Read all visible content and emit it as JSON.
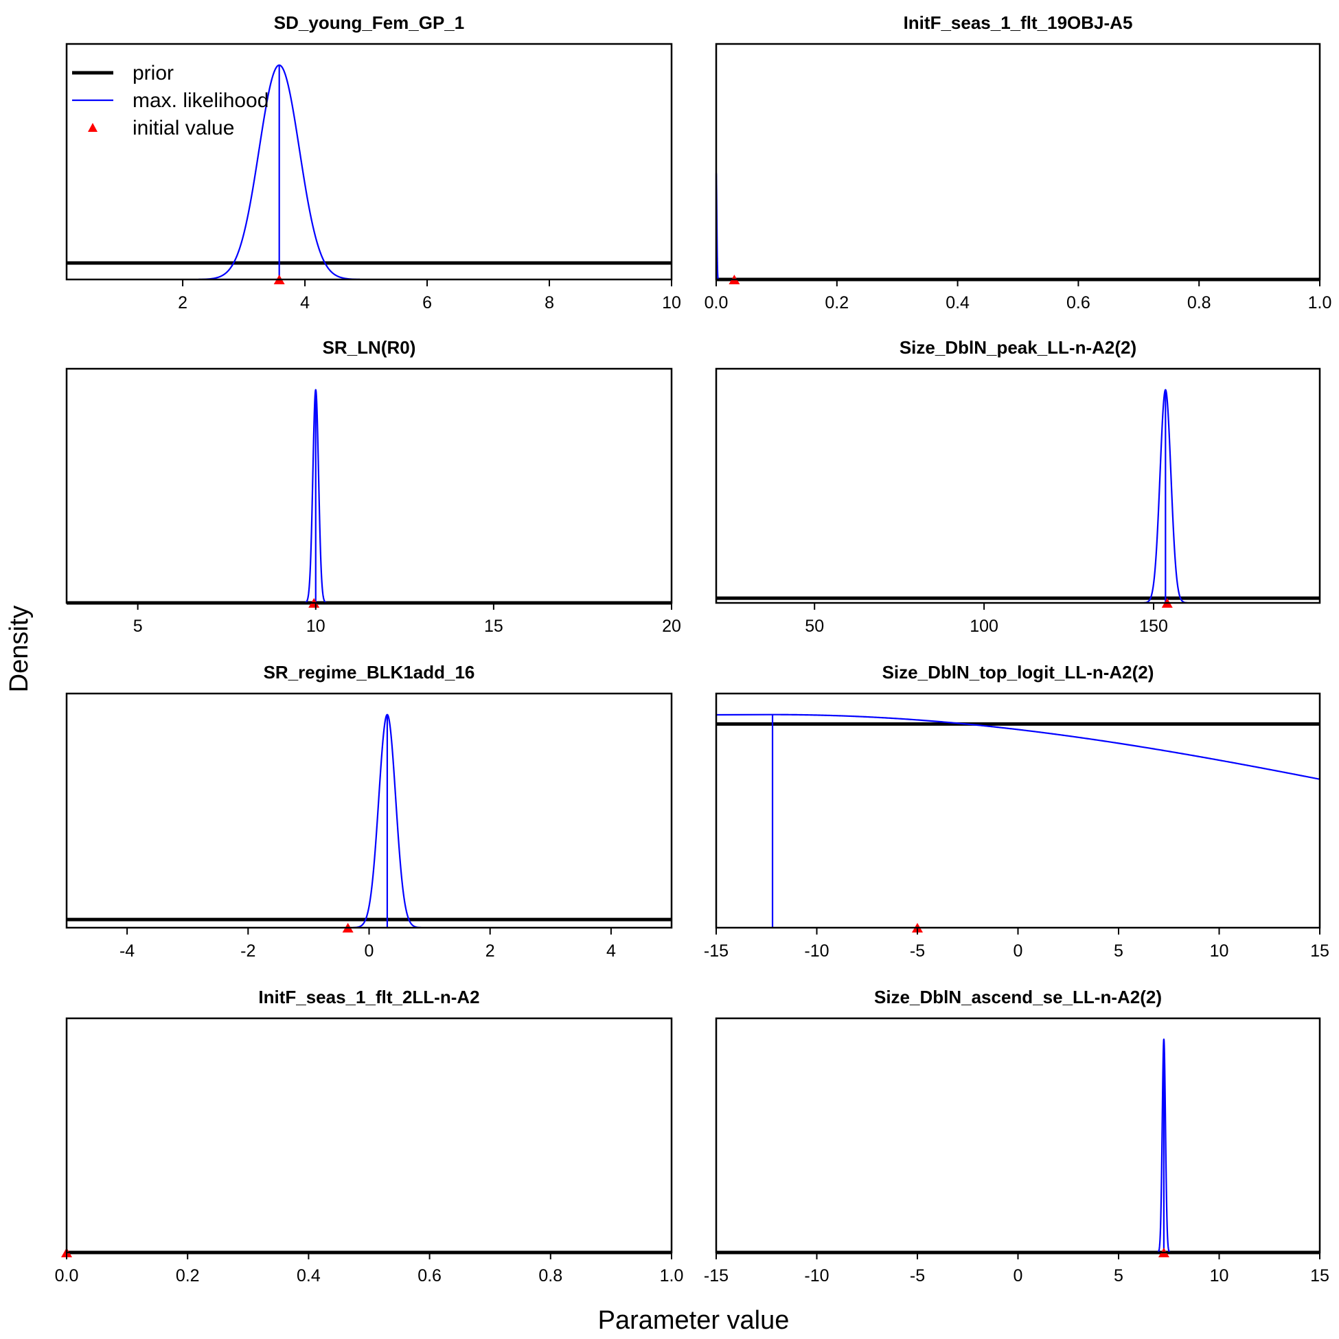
{
  "ylabel": "Density",
  "xlabel": "Parameter value",
  "legend": {
    "placement": "top-left of first panel",
    "items": [
      {
        "label": "prior",
        "color": "#000000",
        "kind": "line-thick"
      },
      {
        "label": "max. likelihood",
        "color": "#0000ff",
        "kind": "line"
      },
      {
        "label": "initial value",
        "color": "#ff0000",
        "kind": "triangle"
      }
    ]
  },
  "colors": {
    "prior": "#000000",
    "mle": "#0000ff",
    "initial": "#ff0000"
  },
  "chart_data": [
    {
      "type": "line",
      "title": "SD_young_Fem_GP_1",
      "xlim": [
        0.1,
        10
      ],
      "ticks": [
        2,
        4,
        6,
        8,
        10
      ],
      "tick_labels": [
        "2",
        "4",
        "6",
        "8",
        "10"
      ],
      "prior_level": 0.07,
      "mle": {
        "mean": 3.58,
        "sd": 0.33,
        "peak": 0.91
      },
      "initial": 3.58,
      "mle_line": 3.58
    },
    {
      "type": "line",
      "title": "InitF_seas_1_flt_19OBJ-A5",
      "xlim": [
        0.0,
        1.0
      ],
      "ticks": [
        0,
        0.2,
        0.4,
        0.6,
        0.8,
        1.0
      ],
      "tick_labels": [
        "0.0",
        "0.2",
        "0.4",
        "0.6",
        "0.8",
        "1.0"
      ],
      "prior_level": 0.0,
      "mle": {
        "mean": 0.0,
        "sd": 0.001,
        "peak": 0.45
      },
      "initial": 0.03,
      "mle_line": 0.0
    },
    {
      "type": "line",
      "title": "SR_LN(R0)",
      "xlim": [
        3,
        20
      ],
      "ticks": [
        5,
        10,
        15,
        20
      ],
      "tick_labels": [
        "5",
        "10",
        "15",
        "20"
      ],
      "prior_level": 0.0,
      "mle": {
        "mean": 10.0,
        "sd": 0.08,
        "peak": 0.91
      },
      "initial": 9.95,
      "mle_line": 10.0
    },
    {
      "type": "line",
      "title": "Size_DblN_peak_LL-n-A2(2)",
      "xlim": [
        21,
        199
      ],
      "ticks": [
        50,
        100,
        150
      ],
      "tick_labels": [
        "50",
        "100",
        "150"
      ],
      "prior_level": 0.02,
      "mle": {
        "mean": 153.5,
        "sd": 1.6,
        "peak": 0.91
      },
      "initial": 154,
      "mle_line": 153.5
    },
    {
      "type": "line",
      "title": "SR_regime_BLK1add_16",
      "xlim": [
        -5,
        5
      ],
      "ticks": [
        -4,
        -2,
        0,
        2,
        4
      ],
      "tick_labels": [
        "-4",
        "-2",
        "0",
        "2",
        "4"
      ],
      "prior_level": 0.035,
      "mle": {
        "mean": 0.3,
        "sd": 0.14,
        "peak": 0.91
      },
      "initial": -0.35,
      "mle_line": 0.3
    },
    {
      "type": "line",
      "title": "Size_DblN_top_logit_LL-n-A2(2)",
      "xlim": [
        -15,
        15
      ],
      "ticks": [
        -15,
        -10,
        -5,
        0,
        5,
        10,
        15
      ],
      "tick_labels": [
        "-15",
        "-10",
        "-5",
        "0",
        "5",
        "10",
        "15"
      ],
      "prior_level": 0.87,
      "mle": {
        "mean": -12.2,
        "sd": 32,
        "peak": 0.91,
        "truncate_left": true
      },
      "initial": -5,
      "mle_line": -12.2
    },
    {
      "type": "line",
      "title": "InitF_seas_1_flt_2LL-n-A2",
      "xlim": [
        0.0,
        1.0
      ],
      "ticks": [
        0,
        0.2,
        0.4,
        0.6,
        0.8,
        1.0
      ],
      "tick_labels": [
        "0.0",
        "0.2",
        "0.4",
        "0.6",
        "0.8",
        "1.0"
      ],
      "prior_level": 0.0,
      "mle": null,
      "initial": 0.0,
      "mle_line": null
    },
    {
      "type": "line",
      "title": "Size_DblN_ascend_se_LL-n-A2(2)",
      "xlim": [
        -15,
        15
      ],
      "ticks": [
        -15,
        -10,
        -5,
        0,
        5,
        10,
        15
      ],
      "tick_labels": [
        "-15",
        "-10",
        "-5",
        "0",
        "5",
        "10",
        "15"
      ],
      "prior_level": 0.0,
      "mle": {
        "mean": 7.25,
        "sd": 0.08,
        "peak": 0.91
      },
      "initial": 7.25,
      "mle_line": 7.25
    }
  ]
}
